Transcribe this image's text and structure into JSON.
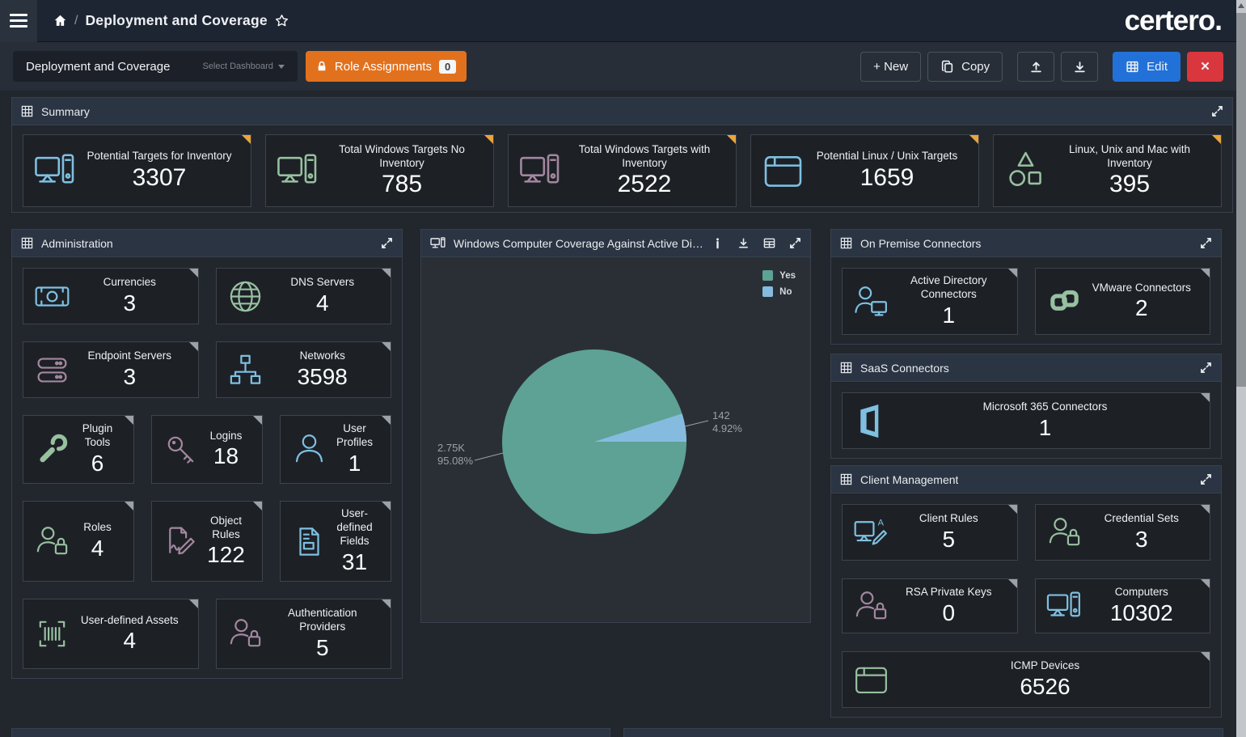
{
  "topnav": {
    "breadcrumb_separator": "/",
    "breadcrumb_title": "Deployment and Coverage",
    "logo": "certero."
  },
  "toolbar": {
    "dashboard_name": "Deployment and Coverage",
    "select_dashboard_label": "Select Dashboard",
    "role_assignments_label": "Role Assignments",
    "role_assignments_count": "0",
    "new_label": "+ New",
    "copy_label": "Copy",
    "edit_label": "Edit",
    "close_label": "✕"
  },
  "colors": {
    "accent_orange": "#e2711d",
    "accent_blue": "#2271d8",
    "accent_red": "#d9363e",
    "icon_blue": "#7fc0e2",
    "icon_green": "#98c0a0",
    "icon_mauve": "#a3879f",
    "corner_orange": "#e9a43b",
    "corner_gray": "#9ba1a7",
    "pie_teal": "#5da295",
    "pie_blue": "#86bbe0"
  },
  "panels": {
    "summary": {
      "title": "Summary",
      "tiles": [
        {
          "label": "Potential Targets for Inventory",
          "value": "3307",
          "icon": "computer-icon",
          "color": "#7fc0e2",
          "corner": "#e9a43b"
        },
        {
          "label": "Total Windows Targets No Inventory",
          "value": "785",
          "icon": "computer-icon",
          "color": "#98c0a0",
          "corner": "#e9a43b"
        },
        {
          "label": "Total Windows Targets with Inventory",
          "value": "2522",
          "icon": "computer-icon",
          "color": "#a3879f",
          "corner": "#e9a43b"
        },
        {
          "label": "Potential Linux / Unix Targets",
          "value": "1659",
          "icon": "window-icon",
          "color": "#7fc0e2",
          "corner": "#e9a43b"
        },
        {
          "label": "Linux, Unix and Mac with Inventory",
          "value": "395",
          "icon": "shapes-icon",
          "color": "#98c0a0",
          "corner": "#e9a43b"
        }
      ]
    },
    "administration": {
      "title": "Administration",
      "rows": [
        {
          "tiles": [
            {
              "label": "Currencies",
              "value": "3",
              "icon": "banknote-icon",
              "color": "#7fc0e2"
            },
            {
              "label": "DNS Servers",
              "value": "4",
              "icon": "globe-icon",
              "color": "#98c0a0"
            }
          ]
        },
        {
          "tiles": [
            {
              "label": "Endpoint Servers",
              "value": "3",
              "icon": "servers-icon",
              "color": "#a3879f"
            },
            {
              "label": "Networks",
              "value": "3598",
              "icon": "network-icon",
              "color": "#7fc0e2"
            }
          ]
        },
        {
          "tiles": [
            {
              "label": "Plugin Tools",
              "value": "6",
              "icon": "wrench-icon",
              "color": "#98c0a0"
            },
            {
              "label": "Logins",
              "value": "18",
              "icon": "key-icon",
              "color": "#a3879f"
            },
            {
              "label": "User Profiles",
              "value": "1",
              "icon": "person-icon",
              "color": "#7fc0e2"
            }
          ]
        },
        {
          "tiles": [
            {
              "label": "Roles",
              "value": "4",
              "icon": "person-lock-icon",
              "color": "#98c0a0"
            },
            {
              "label": "Object Rules",
              "value": "122",
              "icon": "doc-pencil-icon",
              "color": "#a3879f"
            },
            {
              "label": "User-defined Fields",
              "value": "31",
              "icon": "doc-fields-icon",
              "color": "#7fc0e2"
            }
          ]
        },
        {
          "tiles": [
            {
              "label": "User-defined Assets",
              "value": "4",
              "icon": "barcode-icon",
              "color": "#98c0a0"
            },
            {
              "label": "Authentication Providers",
              "value": "5",
              "icon": "person-lock-icon",
              "color": "#a3879f"
            }
          ]
        }
      ]
    },
    "chart": {
      "title": "Windows Computer Coverage Against Active Dir..."
    },
    "on_premise": {
      "title": "On Premise Connectors",
      "tiles": [
        {
          "label": "Active Directory Connectors",
          "value": "1",
          "icon": "person-monitor-icon",
          "color": "#7fc0e2"
        },
        {
          "label": "VMware Connectors",
          "value": "2",
          "icon": "vmware-icon",
          "color": "#98c0a0"
        }
      ]
    },
    "saas": {
      "title": "SaaS Connectors",
      "tiles": [
        {
          "label": "Microsoft 365 Connectors",
          "value": "1",
          "icon": "office-icon",
          "color": "#7fc0e2"
        }
      ]
    },
    "client_management": {
      "title": "Client Management",
      "rows": [
        {
          "tiles": [
            {
              "label": "Client Rules",
              "value": "5",
              "icon": "computer-pencil-icon",
              "color": "#7fc0e2"
            },
            {
              "label": "Credential Sets",
              "value": "3",
              "icon": "person-lock-icon",
              "color": "#98c0a0"
            }
          ]
        },
        {
          "tiles": [
            {
              "label": "RSA Private Keys",
              "value": "0",
              "icon": "person-lock-icon",
              "color": "#a3879f"
            },
            {
              "label": "Computers",
              "value": "10302",
              "icon": "computer-icon",
              "color": "#7fc0e2"
            }
          ]
        },
        {
          "tiles": [
            {
              "label": "ICMP Devices",
              "value": "6526",
              "icon": "window-icon",
              "color": "#98c0a0"
            }
          ]
        }
      ]
    }
  },
  "chart_data": {
    "type": "pie",
    "title": "Windows Computer Coverage Against Active Dir...",
    "legend_position": "top-right",
    "grid": false,
    "slices": [
      {
        "label": "Yes",
        "value": 2745,
        "display_value": "2.75K",
        "percent": 95.08,
        "percent_label": "95.08%",
        "color": "#5da295"
      },
      {
        "label": "No",
        "value": 142,
        "display_value": "142",
        "percent": 4.92,
        "percent_label": "4.92%",
        "color": "#86bbe0"
      }
    ]
  }
}
